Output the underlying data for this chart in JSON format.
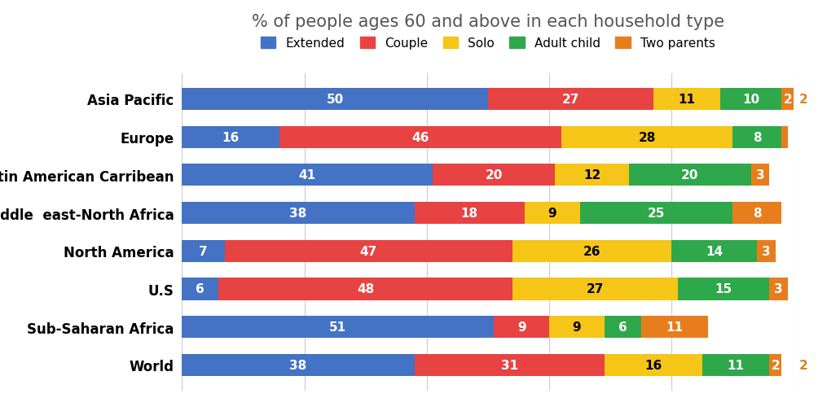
{
  "title": "% of people ages 60 and above in each household type",
  "categories": [
    "Asia Pacific",
    "Europe",
    "Latin American Carribean",
    "Middle  east-North Africa",
    "North America",
    "U.S",
    "Sub-Saharan Africa",
    "World"
  ],
  "series": {
    "Extended": [
      50,
      16,
      41,
      38,
      7,
      6,
      51,
      38
    ],
    "Couple": [
      27,
      46,
      20,
      18,
      47,
      48,
      9,
      31
    ],
    "Solo": [
      11,
      28,
      12,
      9,
      26,
      27,
      9,
      16
    ],
    "Adult child": [
      10,
      8,
      20,
      25,
      14,
      15,
      6,
      11
    ],
    "Two parents": [
      2,
      1,
      3,
      8,
      3,
      3,
      11,
      2
    ]
  },
  "colors": {
    "Extended": "#4472C4",
    "Couple": "#E84343",
    "Solo": "#F5C518",
    "Adult child": "#2EA84A",
    "Two parents": "#E87D1E"
  },
  "legend_order": [
    "Extended",
    "Couple",
    "Solo",
    "Adult child",
    "Two parents"
  ],
  "bar_height": 0.58,
  "background_color": "#FFFFFF",
  "title_color": "#555555",
  "label_fontsize": 11,
  "title_fontsize": 15,
  "legend_fontsize": 11,
  "xlim_max": 100,
  "overflow_rows": {
    "Asia Pacific": 2,
    "World": 2
  },
  "overflow_color": "#E87D1E"
}
